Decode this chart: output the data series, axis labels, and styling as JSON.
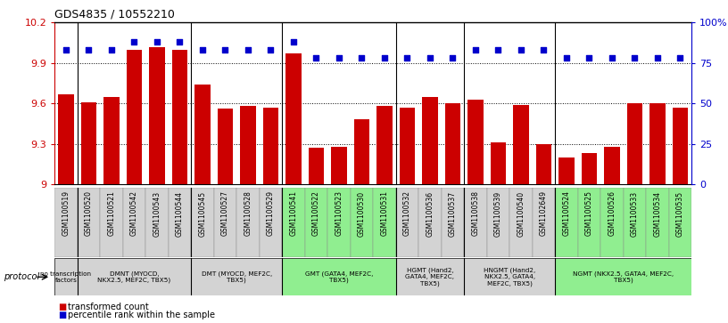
{
  "title": "GDS4835 / 10552210",
  "samples": [
    "GSM1100519",
    "GSM1100520",
    "GSM1100521",
    "GSM1100542",
    "GSM1100543",
    "GSM1100544",
    "GSM1100545",
    "GSM1100527",
    "GSM1100528",
    "GSM1100529",
    "GSM1100541",
    "GSM1100522",
    "GSM1100523",
    "GSM1100530",
    "GSM1100531",
    "GSM1100532",
    "GSM1100536",
    "GSM1100537",
    "GSM1100538",
    "GSM1100539",
    "GSM1100540",
    "GSM1102649",
    "GSM1100524",
    "GSM1100525",
    "GSM1100526",
    "GSM1100533",
    "GSM1100534",
    "GSM1100535"
  ],
  "bar_values": [
    9.67,
    9.61,
    9.65,
    10.0,
    10.02,
    10.0,
    9.74,
    9.56,
    9.58,
    9.57,
    9.97,
    9.27,
    9.28,
    9.48,
    9.58,
    9.57,
    9.65,
    9.6,
    9.63,
    9.31,
    9.59,
    9.3,
    9.2,
    9.23,
    9.28,
    9.6,
    9.6,
    9.57
  ],
  "percentile_values": [
    83,
    83,
    83,
    88,
    88,
    88,
    83,
    83,
    83,
    83,
    88,
    78,
    78,
    78,
    78,
    78,
    78,
    78,
    83,
    83,
    83,
    83,
    78,
    78,
    78,
    78,
    78,
    78
  ],
  "ymin": 9.0,
  "ymax": 10.2,
  "yticks": [
    9.0,
    9.3,
    9.6,
    9.9,
    10.2
  ],
  "ytick_labels": [
    "9",
    "9.3",
    "9.6",
    "9.9",
    "10.2"
  ],
  "right_yticks": [
    0,
    25,
    50,
    75,
    100
  ],
  "right_ytick_labels": [
    "0",
    "25",
    "50",
    "75",
    "100%"
  ],
  "groups": [
    {
      "label": "no transcription\nfactors",
      "start": 0,
      "end": 1,
      "color": "#d3d3d3"
    },
    {
      "label": "DMNT (MYOCD,\nNKX2.5, MEF2C, TBX5)",
      "start": 1,
      "end": 6,
      "color": "#d3d3d3"
    },
    {
      "label": "DMT (MYOCD, MEF2C,\nTBX5)",
      "start": 6,
      "end": 10,
      "color": "#d3d3d3"
    },
    {
      "label": "GMT (GATA4, MEF2C,\nTBX5)",
      "start": 10,
      "end": 15,
      "color": "#90ee90"
    },
    {
      "label": "HGMT (Hand2,\nGATA4, MEF2C,\nTBX5)",
      "start": 15,
      "end": 18,
      "color": "#d3d3d3"
    },
    {
      "label": "HNGMT (Hand2,\nNKX2.5, GATA4,\nMEF2C, TBX5)",
      "start": 18,
      "end": 22,
      "color": "#d3d3d3"
    },
    {
      "label": "NGMT (NKX2.5, GATA4, MEF2C,\nTBX5)",
      "start": 22,
      "end": 28,
      "color": "#90ee90"
    }
  ],
  "bar_color": "#cc0000",
  "dot_color": "#0000cc",
  "ylabel_color": "#cc0000",
  "right_ylabel_color": "#0000cc",
  "grid_color": "#555555",
  "bg_color": "#ffffff"
}
